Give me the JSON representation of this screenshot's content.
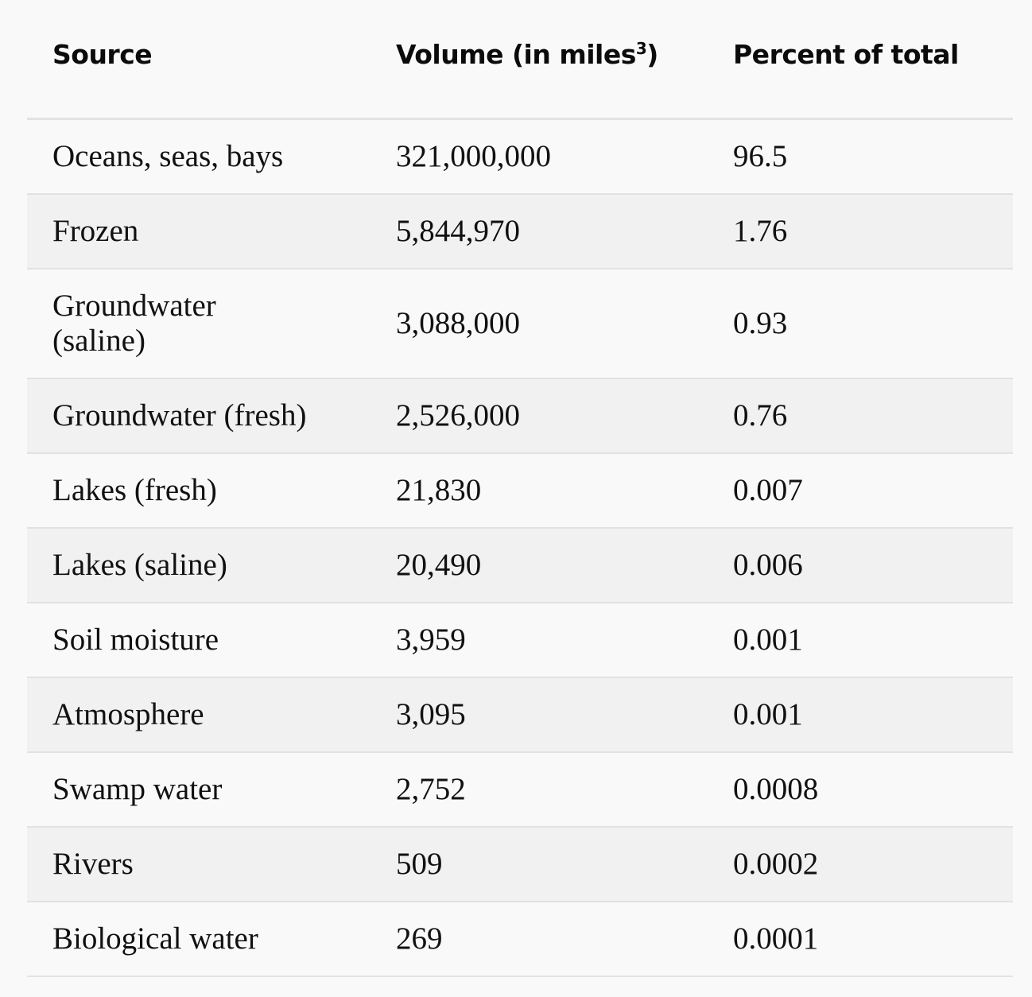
{
  "table": {
    "headers": {
      "source": "Source",
      "volume_prefix": "Volume (in miles",
      "volume_sup": "3",
      "volume_suffix": ")",
      "percent": "Percent of total"
    },
    "rows": [
      {
        "source": "Oceans, seas, bays",
        "volume": "321,000,000",
        "percent": "96.5"
      },
      {
        "source": "Frozen",
        "volume": "5,844,970",
        "percent": "1.76"
      },
      {
        "source": "Groundwater (saline)",
        "volume": "3,088,000",
        "percent": "0.93"
      },
      {
        "source": "Groundwater (fresh)",
        "volume": "2,526,000",
        "percent": "0.76"
      },
      {
        "source": "Lakes (fresh)",
        "volume": "21,830",
        "percent": "0.007"
      },
      {
        "source": "Lakes (saline)",
        "volume": "20,490",
        "percent": "0.006"
      },
      {
        "source": "Soil moisture",
        "volume": "3,959",
        "percent": "0.001"
      },
      {
        "source": "Atmosphere",
        "volume": "3,095",
        "percent": "0.001"
      },
      {
        "source": "Swamp water",
        "volume": "2,752",
        "percent": "0.0008"
      },
      {
        "source": "Rivers",
        "volume": "509",
        "percent": "0.0002"
      },
      {
        "source": "Biological water",
        "volume": "269",
        "percent": "0.0001"
      }
    ]
  },
  "colors": {
    "background": "#f9f9f9",
    "stripe": "#f1f1f1",
    "divider": "#e2e2e2",
    "text": "#111111"
  }
}
